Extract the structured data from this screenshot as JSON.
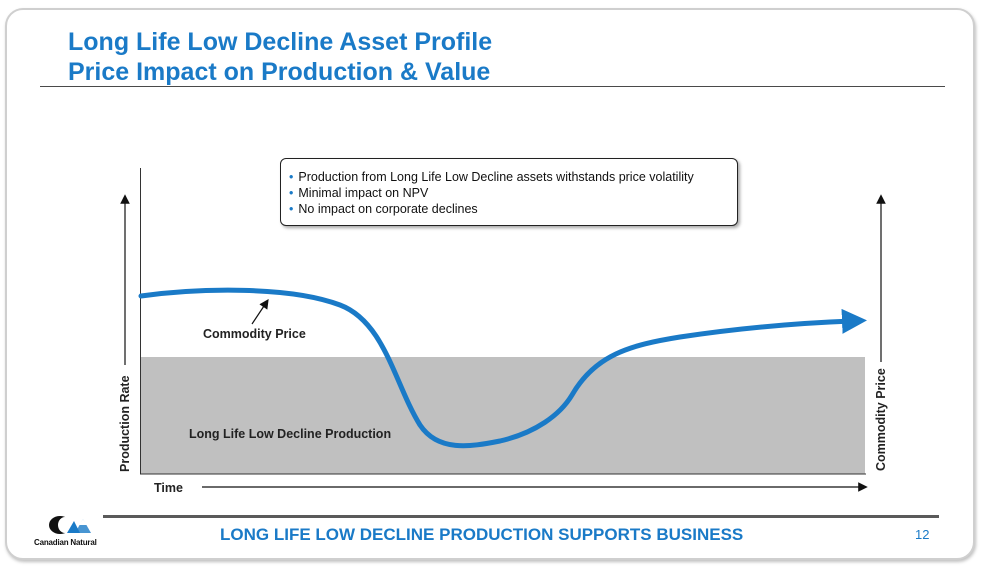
{
  "header": {
    "title_line1": "Long Life Low Decline Asset Profile",
    "title_line2": "Price Impact on Production & Value"
  },
  "callout": {
    "bullets": [
      "Production from Long Life Low Decline assets withstands price volatility",
      "Minimal impact on NPV",
      "No impact on corporate declines"
    ]
  },
  "diagram": {
    "y_axis_left_label": "Production Rate",
    "y_axis_right_label": "Commodity Price",
    "x_axis_label": "Time",
    "price_curve_label": "Commodity Price",
    "production_area_label": "Long Life Low Decline Production",
    "colors": {
      "price_curve": "#1a7ac7",
      "production_area": "#c0c0c0",
      "accent": "#1a7ac7"
    }
  },
  "footer": {
    "tagline": "LONG LIFE LOW DECLINE PRODUCTION SUPPORTS BUSINESS",
    "page_number": "12",
    "logo_text": "Canadian Natural"
  }
}
